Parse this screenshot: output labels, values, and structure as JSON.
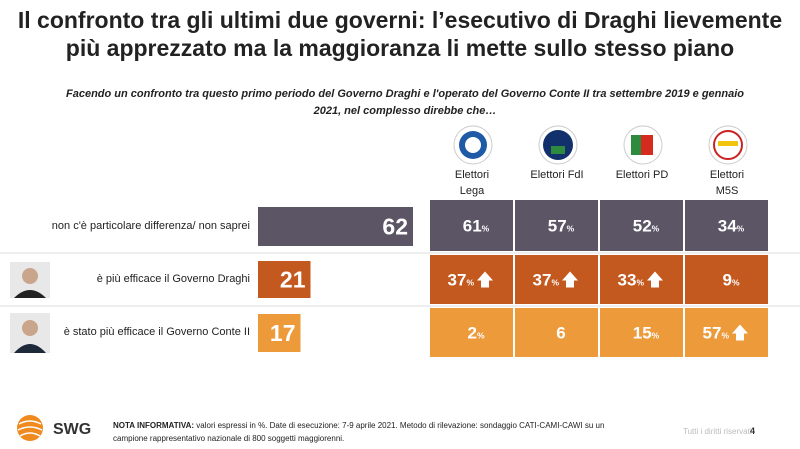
{
  "header": {
    "title": "Il confronto tra gli ultimi due governi: l’esecutivo di Draghi lievemente più apprezzato ma la maggioranza li mette sullo stesso piano",
    "subtitle": "Facendo un confronto tra questo primo periodo del Governo Draghi e l'operato del Governo Conte II tra settembre 2019 e gennaio 2021, nel complesso direbbe che…"
  },
  "chart_data": {
    "type": "bar",
    "orientation": "horizontal",
    "categories": [
      "non c'è particolare differenza/ non saprei",
      "è più efficace il Governo Draghi",
      "è stato più efficace il Governo Conte II"
    ],
    "values": [
      62,
      21,
      17
    ],
    "colors": [
      "#5b5566",
      "#c4591f",
      "#ec9a3a"
    ],
    "groups": [
      {
        "name": "Elettori Lega",
        "values": [
          61,
          37,
          2
        ],
        "value_labels": [
          "61%",
          "37%",
          "2%"
        ],
        "up_arrows": [
          false,
          true,
          false
        ]
      },
      {
        "name": "Elettori FdI",
        "values": [
          57,
          37,
          6
        ],
        "value_labels": [
          "57%",
          "37%",
          "6"
        ],
        "up_arrows": [
          false,
          true,
          false
        ]
      },
      {
        "name": "Elettori PD",
        "values": [
          52,
          33,
          15
        ],
        "value_labels": [
          "52%",
          "33%",
          "15%"
        ],
        "up_arrows": [
          false,
          true,
          false
        ]
      },
      {
        "name": "Elettori M5S",
        "values": [
          34,
          9,
          57
        ],
        "value_labels": [
          "34%",
          "9%",
          "57%"
        ],
        "up_arrows": [
          false,
          false,
          true
        ]
      }
    ]
  },
  "footer": {
    "brand": "SWG",
    "note_label": "NOTA INFORMATIVA:",
    "note": "valori espressi in %. Date di esecuzione: 7-9 aprile 2021. Metodo di rilevazione: sondaggio CATI-CAMI-CAWI su un campione rappresentativo nazionale di 800 soggetti maggiorenni.",
    "rights": "Tutti i diritti riservati",
    "page": "4"
  }
}
